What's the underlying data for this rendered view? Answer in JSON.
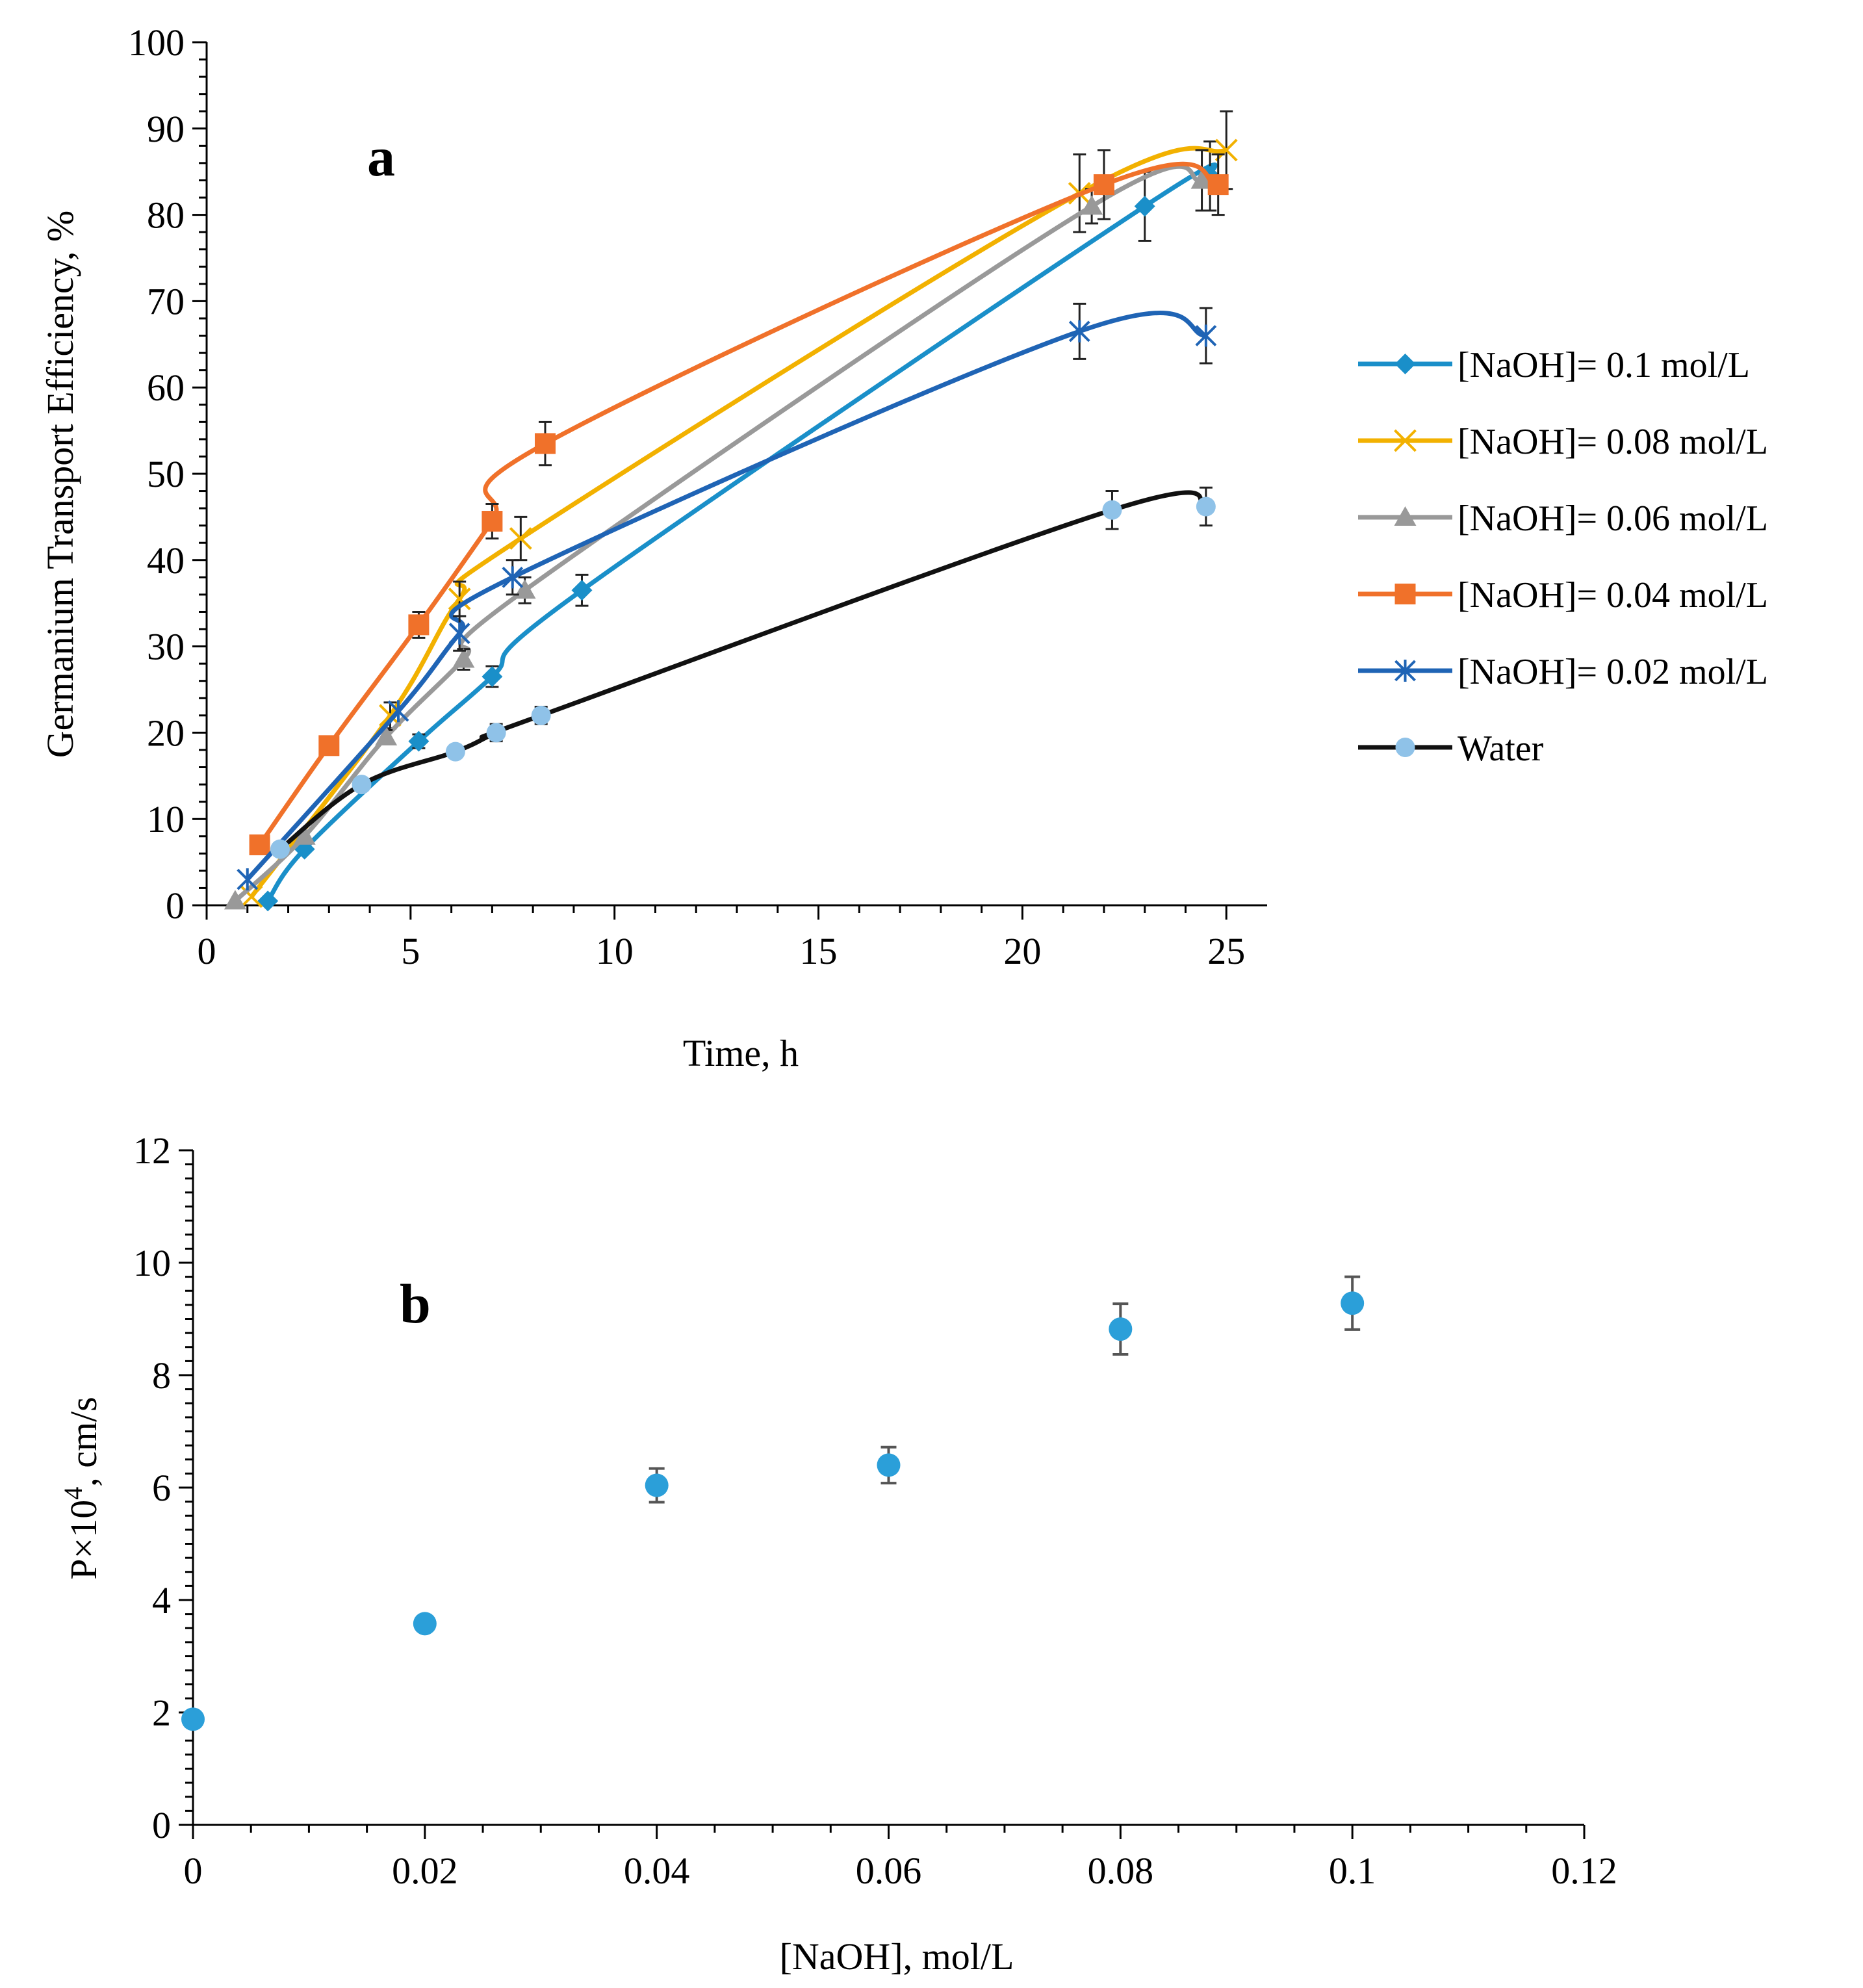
{
  "chart_data": [
    {
      "panel": "a",
      "type": "line",
      "xlabel": "Time, h",
      "ylabel": "Germanium Transport Efficiency, %",
      "xlim": [
        0,
        26
      ],
      "ylim": [
        0,
        100
      ],
      "xticks": [
        0,
        5,
        10,
        15,
        20,
        25
      ],
      "yticks": [
        0,
        10,
        20,
        30,
        40,
        50,
        60,
        70,
        80,
        90,
        100
      ],
      "legend_position": "right",
      "series": [
        {
          "name": "[NaOH]= 0.1 mol/L",
          "color": "#1a8fc9",
          "marker": "diamond",
          "x": [
            1.5,
            2.4,
            5.2,
            7.0,
            9.2,
            23.0,
            24.6
          ],
          "y": [
            0.5,
            6.5,
            19.0,
            26.5,
            36.5,
            81.0,
            84.5
          ],
          "err": [
            0,
            0,
            0.8,
            1.2,
            1.8,
            4.0,
            4.0
          ]
        },
        {
          "name": "[NaOH]= 0.08 mol/L",
          "color": "#f2b100",
          "marker": "x",
          "x": [
            1.1,
            4.5,
            6.2,
            7.7,
            21.4,
            25.0
          ],
          "y": [
            1.0,
            22.0,
            35.5,
            42.5,
            82.5,
            87.5
          ],
          "err": [
            0,
            1.5,
            2.0,
            2.5,
            4.5,
            4.5
          ]
        },
        {
          "name": "[NaOH]= 0.06 mol/L",
          "color": "#999999",
          "marker": "triangle",
          "x": [
            0.7,
            2.4,
            4.4,
            6.3,
            7.8,
            21.7,
            24.4
          ],
          "y": [
            0.5,
            8.0,
            19.5,
            28.5,
            36.5,
            81.0,
            84.0
          ],
          "err": [
            0,
            0,
            0.8,
            1.2,
            1.5,
            2.0,
            3.5
          ]
        },
        {
          "name": "[NaOH]= 0.04 mol/L",
          "color": "#f0712a",
          "marker": "square",
          "x": [
            1.3,
            3.0,
            5.2,
            7.0,
            8.3,
            22.0,
            24.8
          ],
          "y": [
            7.0,
            18.5,
            32.5,
            44.5,
            53.5,
            83.5,
            83.5
          ],
          "err": [
            0,
            0,
            1.5,
            2.0,
            2.5,
            4.0,
            3.5
          ]
        },
        {
          "name": "[NaOH]= 0.02 mol/L",
          "color": "#1f64b5",
          "marker": "asterisk",
          "x": [
            1.0,
            4.7,
            6.2,
            7.5,
            21.4,
            24.5
          ],
          "y": [
            3.0,
            22.5,
            31.5,
            38.0,
            66.5,
            66.0
          ],
          "err": [
            0,
            0,
            2.0,
            2.0,
            3.2,
            3.2
          ]
        },
        {
          "name": "Water",
          "color": "#111111",
          "markerColor": "#8fc2e8",
          "marker": "circle",
          "x": [
            1.8,
            3.8,
            6.1,
            7.1,
            8.2,
            22.2,
            24.5
          ],
          "y": [
            6.5,
            14.0,
            17.8,
            20.0,
            22.0,
            45.8,
            46.2
          ],
          "err": [
            0,
            0,
            0,
            1.0,
            1.0,
            2.2,
            2.2
          ]
        }
      ]
    },
    {
      "panel": "b",
      "type": "scatter",
      "xlabel": "[NaOH], mol/L",
      "ylabel_main": "P×10",
      "ylabel_sup": "4",
      "ylabel_rest": ", cm/s",
      "xlim": [
        0,
        0.12
      ],
      "ylim": [
        0,
        12
      ],
      "xticks": [
        "0",
        "0.02",
        "0.04",
        "0.06",
        "0.08",
        "0.1",
        "0.12"
      ],
      "yticks": [
        0,
        2,
        4,
        6,
        8,
        10,
        12
      ],
      "color": "#2b9fd9",
      "x": [
        0,
        0.02,
        0.04,
        0.06,
        0.08,
        0.1
      ],
      "y": [
        1.88,
        3.58,
        6.04,
        6.4,
        8.82,
        9.28
      ],
      "err": [
        0.05,
        0.12,
        0.3,
        0.32,
        0.45,
        0.47
      ]
    }
  ]
}
